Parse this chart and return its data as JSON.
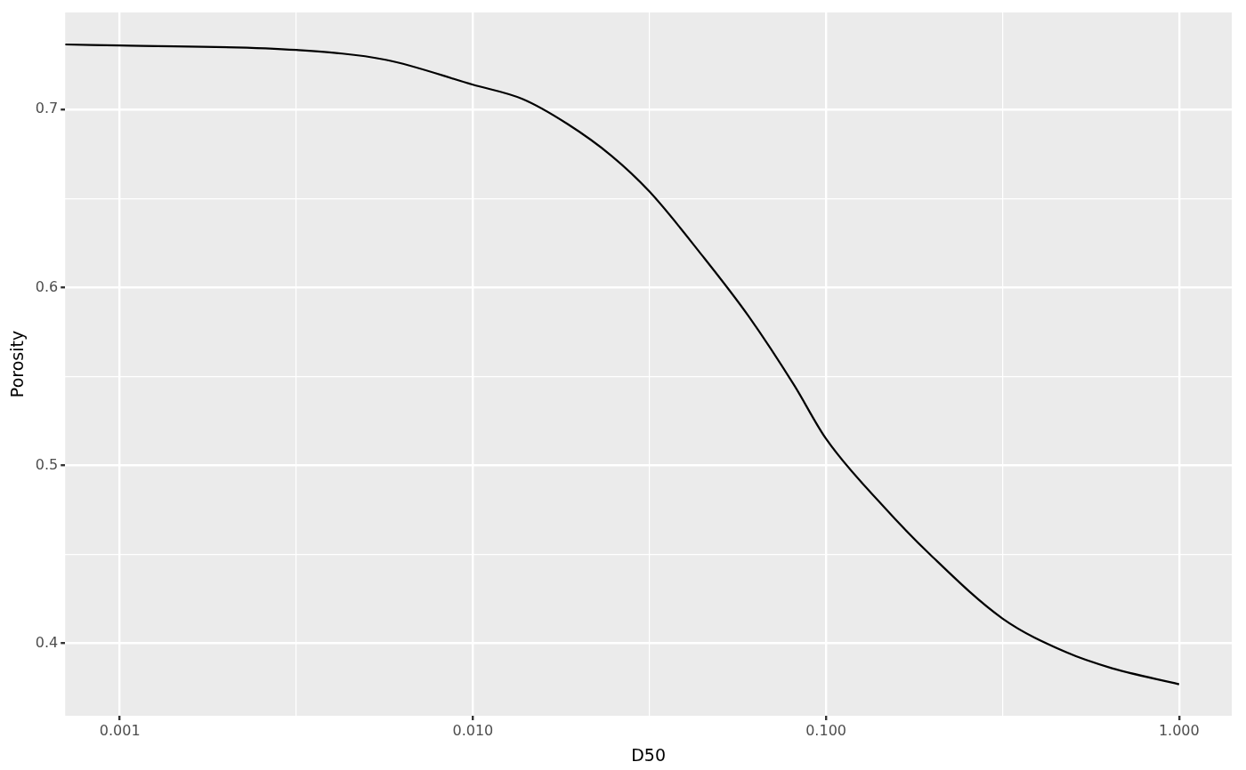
{
  "chart_data": {
    "type": "line",
    "xlabel": "D50",
    "ylabel": "Porosity",
    "log": "x",
    "grid": true,
    "legend": false,
    "marker": "none",
    "line_style": "solid",
    "x": [
      0.0007,
      0.001,
      0.00316,
      0.00566,
      0.01,
      0.0138,
      0.0185,
      0.0247,
      0.0316,
      0.0446,
      0.0603,
      0.0813,
      0.1,
      0.147,
      0.197,
      0.316,
      0.479,
      0.646,
      1
    ],
    "series": [
      {
        "color": "#000000",
        "values": [
          0.7366,
          0.736,
          0.7335,
          0.728,
          0.714,
          0.706,
          0.692,
          0.674,
          0.654,
          0.618,
          0.584,
          0.545,
          0.515,
          0.476,
          0.45,
          0.414,
          0.395,
          0.386,
          0.377
        ]
      }
    ],
    "xlim": [
      0.0007,
      1.41
    ],
    "xticks": [
      {
        "value": 0.001,
        "label": "0.001"
      },
      {
        "value": 0.00316,
        "label": null
      },
      {
        "value": 0.01,
        "label": "0.010"
      },
      {
        "value": 0.0316,
        "label": null
      },
      {
        "value": 0.1,
        "label": "0.100"
      },
      {
        "value": 0.316,
        "label": null
      },
      {
        "value": 1,
        "label": "1.000"
      }
    ],
    "ylim": [
      0.3593,
      0.7546
    ],
    "yticks": [
      0.4,
      {
        "value": 0.45,
        "label": null
      },
      0.5,
      {
        "value": 0.55,
        "label": null
      },
      0.6,
      {
        "value": 0.65,
        "label": null
      },
      0.7
    ]
  }
}
